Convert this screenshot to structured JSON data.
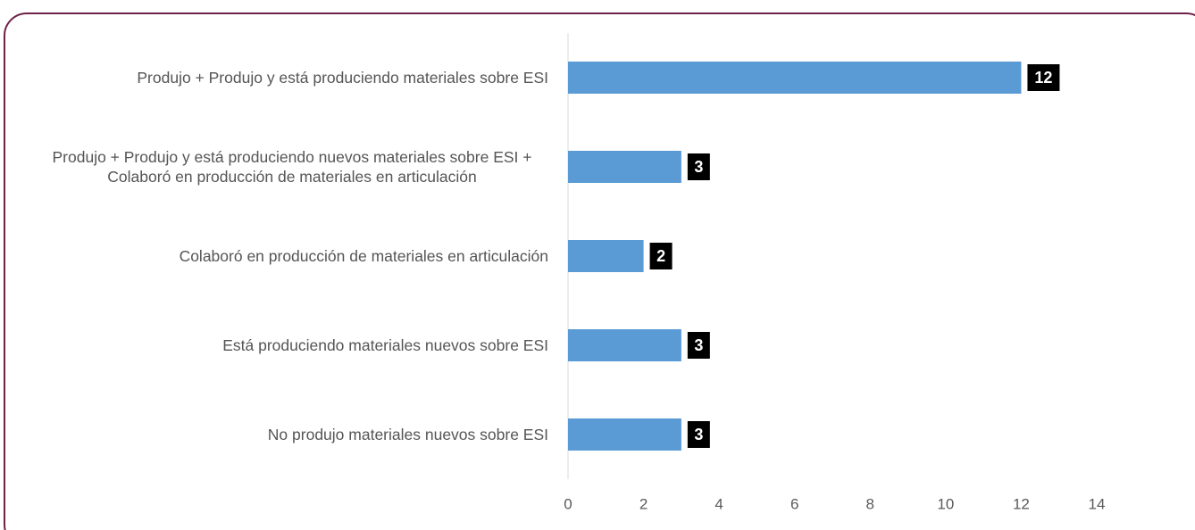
{
  "chart_data": {
    "type": "bar",
    "orientation": "horizontal",
    "categories": [
      "Produjo + Produjo y está produciendo materiales sobre ESI",
      "Produjo + Produjo y está produciendo nuevos materiales sobre ESI + Colaboró en producción de materiales en articulación",
      "Colaboró en producción de materiales en articulación",
      "Está produciendo materiales nuevos sobre ESI",
      "No produjo materiales nuevos sobre ESI"
    ],
    "values": [
      12,
      3,
      2,
      3,
      3
    ],
    "color": "#5b9bd5",
    "xlim": [
      0,
      14
    ],
    "xticks": [
      0,
      2,
      4,
      6,
      8,
      10,
      12,
      14
    ],
    "grid": false,
    "data_labels": true
  }
}
